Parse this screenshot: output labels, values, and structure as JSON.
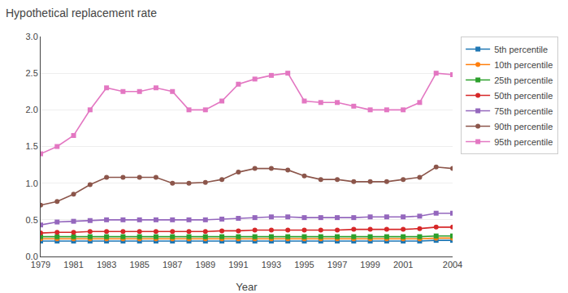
{
  "chart_data": {
    "type": "line",
    "title": "Hypothetical replacement rate",
    "x_label": "Year",
    "x": [
      1979,
      1980,
      1981,
      1982,
      1983,
      1984,
      1985,
      1986,
      1987,
      1988,
      1989,
      1990,
      1991,
      1992,
      1993,
      1994,
      1995,
      1996,
      1997,
      1998,
      1999,
      2000,
      2001,
      2002,
      2003,
      2004
    ],
    "series": [
      {
        "name": "5th percentile",
        "marker": "square",
        "values": [
          0.21,
          0.21,
          0.21,
          0.21,
          0.21,
          0.21,
          0.21,
          0.21,
          0.21,
          0.21,
          0.21,
          0.21,
          0.21,
          0.21,
          0.21,
          0.21,
          0.21,
          0.21,
          0.21,
          0.21,
          0.21,
          0.21,
          0.21,
          0.21,
          0.22,
          0.22
        ]
      },
      {
        "name": "10th percentile",
        "marker": "circle",
        "values": [
          0.24,
          0.24,
          0.24,
          0.24,
          0.24,
          0.24,
          0.24,
          0.24,
          0.24,
          0.24,
          0.24,
          0.24,
          0.24,
          0.24,
          0.24,
          0.24,
          0.24,
          0.24,
          0.24,
          0.24,
          0.24,
          0.24,
          0.24,
          0.24,
          0.25,
          0.25
        ]
      },
      {
        "name": "25th percentile",
        "marker": "square",
        "values": [
          0.27,
          0.27,
          0.27,
          0.27,
          0.27,
          0.27,
          0.27,
          0.27,
          0.27,
          0.27,
          0.27,
          0.27,
          0.27,
          0.27,
          0.27,
          0.27,
          0.27,
          0.27,
          0.27,
          0.27,
          0.27,
          0.27,
          0.27,
          0.27,
          0.28,
          0.28
        ]
      },
      {
        "name": "50th percentile",
        "marker": "circle",
        "values": [
          0.32,
          0.33,
          0.33,
          0.34,
          0.34,
          0.34,
          0.34,
          0.34,
          0.34,
          0.34,
          0.34,
          0.35,
          0.35,
          0.36,
          0.36,
          0.36,
          0.36,
          0.36,
          0.36,
          0.37,
          0.37,
          0.37,
          0.37,
          0.38,
          0.4,
          0.4
        ]
      },
      {
        "name": "75th percentile",
        "marker": "square",
        "values": [
          0.43,
          0.47,
          0.48,
          0.49,
          0.5,
          0.5,
          0.5,
          0.5,
          0.5,
          0.5,
          0.5,
          0.51,
          0.52,
          0.53,
          0.54,
          0.54,
          0.53,
          0.53,
          0.53,
          0.53,
          0.54,
          0.54,
          0.54,
          0.55,
          0.59,
          0.59
        ]
      },
      {
        "name": "90th percentile",
        "marker": "circle",
        "values": [
          0.7,
          0.75,
          0.85,
          0.98,
          1.08,
          1.08,
          1.08,
          1.08,
          1.0,
          1.0,
          1.01,
          1.05,
          1.15,
          1.2,
          1.2,
          1.18,
          1.1,
          1.05,
          1.05,
          1.02,
          1.02,
          1.02,
          1.05,
          1.08,
          1.22,
          1.2
        ]
      },
      {
        "name": "95th percentile",
        "marker": "square",
        "values": [
          1.4,
          1.5,
          1.65,
          2.0,
          2.3,
          2.25,
          2.25,
          2.3,
          2.25,
          2.0,
          2.0,
          2.12,
          2.35,
          2.42,
          2.47,
          2.5,
          2.12,
          2.1,
          2.1,
          2.05,
          2.0,
          2.0,
          2.0,
          2.1,
          2.5,
          2.48
        ]
      }
    ],
    "xlim": [
      1979,
      2004
    ],
    "xticks": [
      1979,
      1981,
      1983,
      1985,
      1987,
      1989,
      1991,
      1993,
      1995,
      1997,
      1999,
      2001,
      2004
    ],
    "ylim": [
      0.0,
      3.0
    ],
    "yticks": [
      {
        "value": 0,
        "label": "0.0"
      },
      0.5,
      {
        "value": 1,
        "label": "1.0"
      },
      1.5,
      {
        "value": 2,
        "label": "2.0"
      },
      2.5,
      {
        "value": 3,
        "label": "3.0"
      }
    ],
    "grid": "y",
    "legend": "right"
  }
}
